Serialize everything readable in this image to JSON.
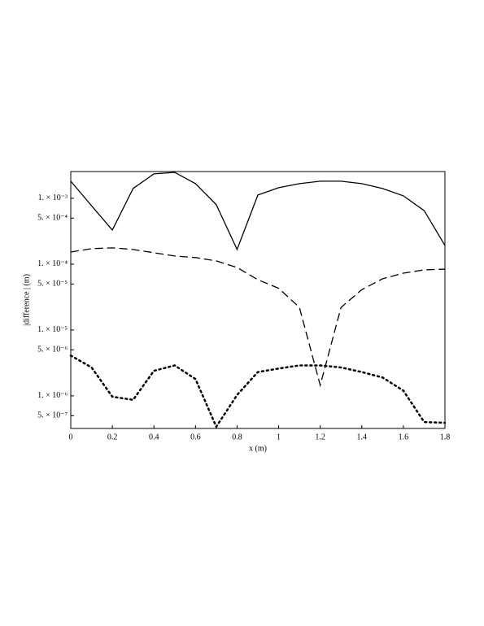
{
  "chart_data": {
    "type": "line",
    "xlabel": "x (m)",
    "ylabel": "|difference | (m)",
    "x": [
      0,
      0.1,
      0.2,
      0.3,
      0.4,
      0.5,
      0.6,
      0.7,
      0.8,
      0.9,
      1,
      1.1,
      1.2,
      1.3,
      1.4,
      1.5,
      1.6,
      1.7,
      1.8
    ],
    "series": [
      {
        "color": "#000000",
        "style": "solid",
        "values": [
          0.00182,
          0.00077,
          0.00033,
          0.00141,
          0.00235,
          0.00248,
          0.00167,
          0.0008,
          0.000167,
          0.00112,
          0.00145,
          0.00167,
          0.00182,
          0.00182,
          0.00167,
          0.00141,
          0.00109,
          0.00065,
          0.000192
        ]
      },
      {
        "color": "#000000",
        "style": "dashed",
        "values": [
          0.000153,
          0.000172,
          0.000177,
          0.000167,
          0.000149,
          0.000133,
          0.000126,
          0.000112,
          8.9e-05,
          5.8e-05,
          4.3e-05,
          2.2e-05,
          1.45e-06,
          2.2e-05,
          4.1e-05,
          6e-05,
          7.3e-05,
          8.2e-05,
          8.4e-05
        ]
      },
      {
        "color": "#000000",
        "style": "dotted",
        "values": [
          4.1e-06,
          2.7e-06,
          9.7e-07,
          8.7e-07,
          2.4e-06,
          2.9e-06,
          1.8e-06,
          3.4e-07,
          1.03e-06,
          2.3e-06,
          2.6e-06,
          2.9e-06,
          2.9e-06,
          2.7e-06,
          2.3e-06,
          1.9e-06,
          1.2e-06,
          4e-07,
          3.9e-07
        ]
      }
    ],
    "xlim": [
      0,
      1.8
    ],
    "xticks": [
      0,
      0.2,
      0.4,
      0.6,
      0.8,
      1,
      1.2,
      1.4,
      1.6,
      1.8
    ],
    "ylim": [
      3.2e-07,
      0.00255
    ],
    "ylog": true,
    "yticks": [
      {
        "value": 0.001,
        "label": "1. × 10⁻³"
      },
      {
        "value": 0.0005,
        "label": "5. × 10⁻⁴"
      },
      {
        "value": 0.0001,
        "label": "1. × 10⁻⁴"
      },
      {
        "value": 5e-05,
        "label": "5. × 10⁻⁵"
      },
      {
        "value": 1e-05,
        "label": "1. × 10⁻⁵"
      },
      {
        "value": 5e-06,
        "label": "5. × 10⁻⁶"
      },
      {
        "value": 1e-06,
        "label": "1. × 10⁻⁶"
      },
      {
        "value": 5e-07,
        "label": "5. × 10⁻⁷"
      }
    ]
  }
}
